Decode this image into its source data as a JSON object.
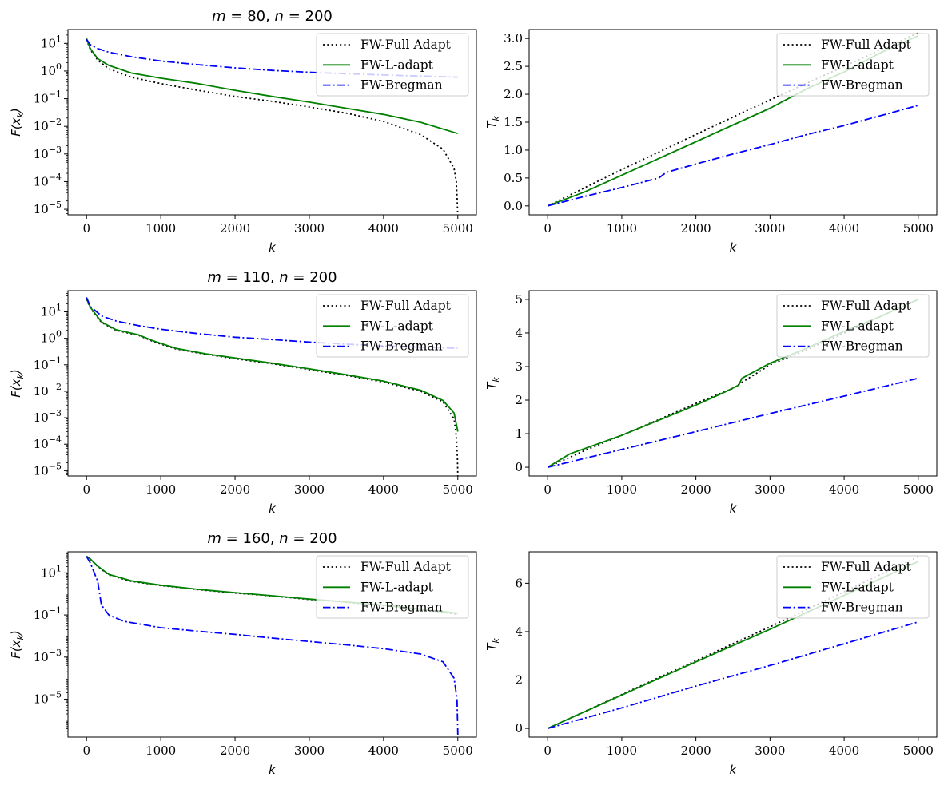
{
  "chart_data": [
    {
      "type": "line",
      "title": "m = 80,  n = 200",
      "title_parts": {
        "m": "80",
        "n": "200"
      },
      "xlabel": "k",
      "ylabel": "F(x_k)",
      "ylabel_parts": {
        "base": "F(x",
        "sub": "k",
        "close": ")"
      },
      "yscale": "log",
      "xlim": [
        -250,
        5250
      ],
      "ylim_exp": [
        -5.2,
        1.5
      ],
      "xticks": [
        "0",
        "1000",
        "2000",
        "3000",
        "4000",
        "5000"
      ],
      "yticks": [
        {
          "exp": 1,
          "base": "10",
          "sup": "1"
        },
        {
          "exp": 0,
          "base": "10",
          "sup": "0"
        },
        {
          "exp": -1,
          "base": "10",
          "sup": "−1"
        },
        {
          "exp": -2,
          "base": "10",
          "sup": "−2"
        },
        {
          "exp": -3,
          "base": "10",
          "sup": "−3"
        },
        {
          "exp": -4,
          "base": "10",
          "sup": "−4"
        },
        {
          "exp": -5,
          "base": "10",
          "sup": "−5"
        }
      ],
      "legend": [
        "FW-Full Adapt",
        "FW-L-adapt",
        "FW-Bregman"
      ],
      "series": [
        {
          "name": "FW-Full Adapt",
          "color": "#000000",
          "dash": "dotted",
          "x": [
            0,
            50,
            150,
            300,
            600,
            1000,
            1500,
            2000,
            2500,
            3000,
            3500,
            4000,
            4500,
            4800,
            4950,
            4980,
            4990,
            5000
          ],
          "y": [
            14,
            6,
            2.5,
            1.2,
            0.6,
            0.35,
            0.2,
            0.12,
            0.08,
            0.05,
            0.03,
            0.015,
            0.005,
            0.0015,
            0.0003,
            0.0001,
            3e-05,
            5e-06
          ]
        },
        {
          "name": "FW-L-adapt",
          "color": "#008000",
          "dash": "solid",
          "x": [
            0,
            50,
            150,
            300,
            600,
            1000,
            1500,
            2000,
            2500,
            3000,
            3500,
            4000,
            4500,
            5000
          ],
          "y": [
            15,
            6.5,
            2.8,
            1.6,
            0.85,
            0.55,
            0.35,
            0.2,
            0.12,
            0.075,
            0.045,
            0.027,
            0.014,
            0.0055
          ]
        },
        {
          "name": "FW-Bregman",
          "color": "#0000ff",
          "dash": "dashdot",
          "x": [
            0,
            50,
            150,
            300,
            600,
            1000,
            1500,
            2000,
            2500,
            3000,
            3500,
            4000,
            4500,
            5000
          ],
          "y": [
            14,
            9,
            6.5,
            4.8,
            3.3,
            2.3,
            1.7,
            1.3,
            1.05,
            0.9,
            0.8,
            0.72,
            0.66,
            0.6
          ]
        }
      ]
    },
    {
      "type": "line",
      "title": "",
      "xlabel": "k",
      "ylabel": "T_k",
      "ylabel_parts": {
        "base": "T",
        "sub": "k"
      },
      "yscale": "linear",
      "xlim": [
        -250,
        5250
      ],
      "ylim": [
        -0.16,
        3.16
      ],
      "xticks": [
        "0",
        "1000",
        "2000",
        "3000",
        "4000",
        "5000"
      ],
      "yticks": [
        "0.0",
        "0.5",
        "1.0",
        "1.5",
        "2.0",
        "2.5",
        "3.0"
      ],
      "ytick_values": [
        0,
        0.5,
        1.0,
        1.5,
        2.0,
        2.5,
        3.0
      ],
      "legend": [
        "FW-Full Adapt",
        "FW-L-adapt",
        "FW-Bregman"
      ],
      "series": [
        {
          "name": "FW-Full Adapt",
          "color": "#000000",
          "dash": "dotted",
          "x": [
            0,
            1000,
            2000,
            3000,
            4000,
            5000
          ],
          "y": [
            0,
            0.65,
            1.28,
            1.9,
            2.5,
            3.1
          ]
        },
        {
          "name": "FW-L-adapt",
          "color": "#008000",
          "dash": "solid",
          "x": [
            0,
            500,
            1000,
            1500,
            2000,
            2500,
            3000,
            3500,
            4000,
            4500,
            5000
          ],
          "y": [
            0,
            0.25,
            0.55,
            0.85,
            1.15,
            1.45,
            1.75,
            2.1,
            2.4,
            2.75,
            3.05
          ]
        },
        {
          "name": "FW-Bregman",
          "color": "#0000ff",
          "dash": "dashdot",
          "x": [
            0,
            500,
            1000,
            1500,
            1600,
            2000,
            2500,
            3000,
            3500,
            4000,
            4500,
            5000
          ],
          "y": [
            0,
            0.17,
            0.33,
            0.5,
            0.6,
            0.75,
            0.93,
            1.1,
            1.28,
            1.44,
            1.62,
            1.8
          ]
        }
      ]
    },
    {
      "type": "line",
      "title": "m = 110,  n = 200",
      "title_parts": {
        "m": "110",
        "n": "200"
      },
      "xlabel": "k",
      "ylabel": "F(x_k)",
      "ylabel_parts": {
        "base": "F(x",
        "sub": "k",
        "close": ")"
      },
      "yscale": "log",
      "xlim": [
        -250,
        5250
      ],
      "ylim_exp": [
        -5.2,
        1.8
      ],
      "xticks": [
        "0",
        "1000",
        "2000",
        "3000",
        "4000",
        "5000"
      ],
      "yticks": [
        {
          "exp": 1,
          "base": "10",
          "sup": "1"
        },
        {
          "exp": 0,
          "base": "10",
          "sup": "0"
        },
        {
          "exp": -1,
          "base": "10",
          "sup": "−1"
        },
        {
          "exp": -2,
          "base": "10",
          "sup": "−2"
        },
        {
          "exp": -3,
          "base": "10",
          "sup": "−3"
        },
        {
          "exp": -4,
          "base": "10",
          "sup": "−4"
        },
        {
          "exp": -5,
          "base": "10",
          "sup": "−5"
        }
      ],
      "legend": [
        "FW-Full Adapt",
        "FW-L-adapt",
        "FW-Bregman"
      ],
      "series": [
        {
          "name": "FW-Full Adapt",
          "color": "#000000",
          "dash": "dotted",
          "x": [
            0,
            50,
            200,
            400,
            700,
            900,
            1200,
            1600,
            2000,
            2500,
            3000,
            3500,
            4000,
            4500,
            4800,
            4950,
            4980,
            4995,
            5000
          ],
          "y": [
            30,
            14,
            4,
            2,
            1.3,
            0.75,
            0.4,
            0.25,
            0.17,
            0.11,
            0.065,
            0.04,
            0.022,
            0.01,
            0.004,
            0.0009,
            0.0002,
            3e-05,
            6e-06
          ]
        },
        {
          "name": "FW-L-adapt",
          "color": "#008000",
          "dash": "solid",
          "x": [
            0,
            50,
            200,
            400,
            700,
            900,
            1200,
            1600,
            2000,
            2500,
            3000,
            3500,
            4000,
            4500,
            4800,
            4950,
            5000
          ],
          "y": [
            32,
            15,
            4.2,
            2.1,
            1.35,
            0.8,
            0.42,
            0.26,
            0.18,
            0.115,
            0.07,
            0.042,
            0.024,
            0.011,
            0.0045,
            0.0015,
            0.0003
          ]
        },
        {
          "name": "FW-Bregman",
          "color": "#0000ff",
          "dash": "dashdot",
          "x": [
            0,
            50,
            200,
            400,
            700,
            1000,
            1500,
            2000,
            2500,
            3000,
            3500,
            4000,
            4500,
            5000
          ],
          "y": [
            35,
            16,
            7,
            4.5,
            3,
            2.2,
            1.5,
            1.1,
            0.9,
            0.72,
            0.6,
            0.52,
            0.46,
            0.42
          ]
        }
      ]
    },
    {
      "type": "line",
      "title": "",
      "xlabel": "k",
      "ylabel": "T_k",
      "ylabel_parts": {
        "base": "T",
        "sub": "k"
      },
      "yscale": "linear",
      "xlim": [
        -250,
        5250
      ],
      "ylim": [
        -0.26,
        5.26
      ],
      "xticks": [
        "0",
        "1000",
        "2000",
        "3000",
        "4000",
        "5000"
      ],
      "yticks": [
        "0",
        "1",
        "2",
        "3",
        "4",
        "5"
      ],
      "ytick_values": [
        0,
        1,
        2,
        3,
        4,
        5
      ],
      "legend": [
        "FW-Full Adapt",
        "FW-L-adapt",
        "FW-Bregman"
      ],
      "series": [
        {
          "name": "FW-Full Adapt",
          "color": "#000000",
          "dash": "dotted",
          "x": [
            0,
            500,
            1000,
            1500,
            2000,
            2500,
            2600,
            3000,
            3500,
            4000,
            4500,
            5000
          ],
          "y": [
            0,
            0.5,
            0.95,
            1.42,
            1.9,
            2.35,
            2.5,
            3.05,
            3.5,
            4.0,
            4.5,
            5.0
          ]
        },
        {
          "name": "FW-L-adapt",
          "color": "#008000",
          "dash": "solid",
          "x": [
            0,
            300,
            1000,
            1500,
            2000,
            2400,
            2580,
            2620,
            3000,
            3500,
            4000,
            4500,
            5000
          ],
          "y": [
            0,
            0.4,
            0.95,
            1.4,
            1.85,
            2.25,
            2.45,
            2.65,
            3.1,
            3.55,
            4.05,
            4.5,
            5.0
          ]
        },
        {
          "name": "FW-Bregman",
          "color": "#0000ff",
          "dash": "dashdot",
          "x": [
            0,
            1000,
            2000,
            3000,
            4000,
            5000
          ],
          "y": [
            0,
            0.53,
            1.06,
            1.6,
            2.12,
            2.65
          ]
        }
      ]
    },
    {
      "type": "line",
      "title": "m = 160,  n = 200",
      "title_parts": {
        "m": "160",
        "n": "200"
      },
      "xlabel": "k",
      "ylabel": "F(x_k)",
      "ylabel_parts": {
        "base": "F(x",
        "sub": "k",
        "close": ")"
      },
      "yscale": "log",
      "xlim": [
        -250,
        5250
      ],
      "ylim_exp": [
        -6.8,
        2.0
      ],
      "xticks": [
        "0",
        "1000",
        "2000",
        "3000",
        "4000",
        "5000"
      ],
      "yticks": [
        {
          "exp": 1,
          "base": "10",
          "sup": "1"
        },
        {
          "exp": -1,
          "base": "10",
          "sup": "−1"
        },
        {
          "exp": -3,
          "base": "10",
          "sup": "−3"
        },
        {
          "exp": -5,
          "base": "10",
          "sup": "−5"
        }
      ],
      "legend": [
        "FW-Full Adapt",
        "FW-L-adapt",
        "FW-Bregman"
      ],
      "series": [
        {
          "name": "FW-Full Adapt",
          "color": "#000000",
          "dash": "dotted",
          "x": [
            0,
            50,
            150,
            300,
            600,
            1000,
            1500,
            2000,
            2500,
            3000,
            3500,
            4000,
            4500,
            5000
          ],
          "y": [
            60,
            45,
            20,
            8,
            4,
            2.5,
            1.6,
            1.1,
            0.8,
            0.55,
            0.4,
            0.28,
            0.18,
            0.11
          ]
        },
        {
          "name": "FW-L-adapt",
          "color": "#008000",
          "dash": "solid",
          "x": [
            0,
            50,
            150,
            300,
            600,
            1000,
            1500,
            2000,
            2500,
            3000,
            3500,
            4000,
            4500,
            5000
          ],
          "y": [
            62,
            46,
            21,
            8.5,
            4.2,
            2.6,
            1.65,
            1.15,
            0.82,
            0.57,
            0.41,
            0.29,
            0.19,
            0.12
          ]
        },
        {
          "name": "FW-Bregman",
          "color": "#0000ff",
          "dash": "dashdot",
          "x": [
            0,
            50,
            150,
            200,
            300,
            500,
            1000,
            1500,
            2000,
            2500,
            3000,
            3500,
            4000,
            4500,
            4800,
            4950,
            4990,
            5000
          ],
          "y": [
            60,
            30,
            4,
            0.3,
            0.1,
            0.05,
            0.025,
            0.017,
            0.012,
            0.008,
            0.0055,
            0.0038,
            0.0025,
            0.0014,
            0.0006,
            0.0001,
            1e-05,
            2e-07
          ]
        }
      ]
    },
    {
      "type": "line",
      "title": "",
      "xlabel": "k",
      "ylabel": "T_k",
      "ylabel_parts": {
        "base": "T",
        "sub": "k"
      },
      "yscale": "linear",
      "xlim": [
        -250,
        5250
      ],
      "ylim": [
        -0.36,
        7.3
      ],
      "xticks": [
        "0",
        "1000",
        "2000",
        "3000",
        "4000",
        "5000"
      ],
      "yticks": [
        "0",
        "2",
        "4",
        "6"
      ],
      "ytick_values": [
        0,
        2,
        4,
        6
      ],
      "legend": [
        "FW-Full Adapt",
        "FW-L-adapt",
        "FW-Bregman"
      ],
      "series": [
        {
          "name": "FW-Full Adapt",
          "color": "#000000",
          "dash": "dotted",
          "x": [
            0,
            1000,
            2000,
            3000,
            4000,
            5000
          ],
          "y": [
            0,
            1.4,
            2.8,
            4.2,
            5.65,
            7.1
          ]
        },
        {
          "name": "FW-L-adapt",
          "color": "#008000",
          "dash": "solid",
          "x": [
            0,
            1000,
            2000,
            3000,
            4000,
            5000
          ],
          "y": [
            0,
            1.38,
            2.75,
            4.1,
            5.5,
            6.9
          ]
        },
        {
          "name": "FW-Bregman",
          "color": "#0000ff",
          "dash": "dashdot",
          "x": [
            0,
            1000,
            2000,
            3000,
            4000,
            5000
          ],
          "y": [
            0,
            0.85,
            1.75,
            2.6,
            3.5,
            4.4
          ]
        }
      ]
    }
  ]
}
